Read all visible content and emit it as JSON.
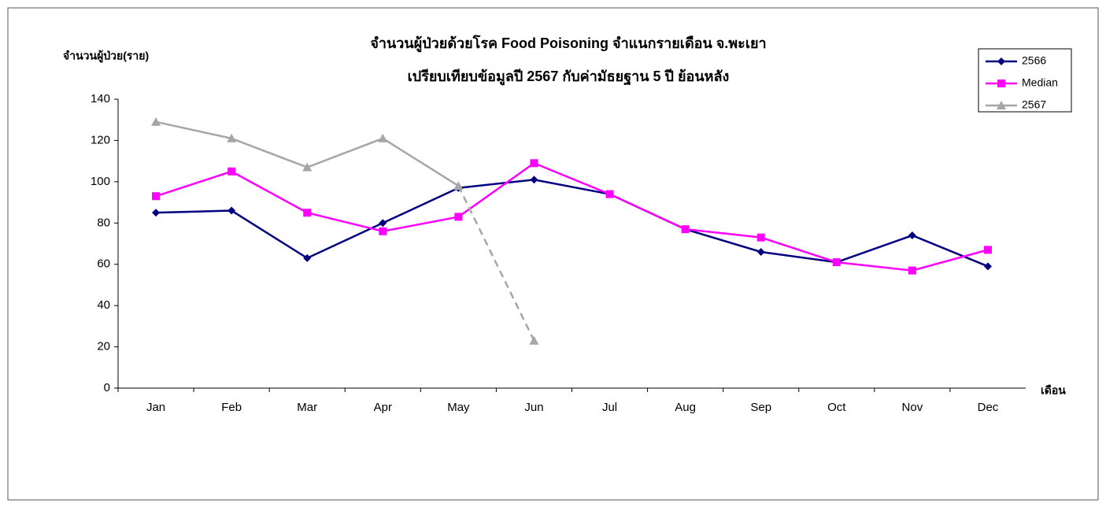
{
  "chart_data": {
    "type": "line",
    "title": "จำนวนผู้ป่วยด้วยโรค  Food Poisoning  จำแนกรายเดือน   จ.พะเยา",
    "subtitle": "เปรียบเทียบข้อมูลปี  2567  กับค่ามัธยฐาน 5 ปี ย้อนหลัง",
    "y_label": "จำนวนผู้ป่วย(ราย)",
    "x_label": "เดือน",
    "categories": [
      "Jan",
      "Feb",
      "Mar",
      "Apr",
      "May",
      "Jun",
      "Jul",
      "Aug",
      "Sep",
      "Oct",
      "Nov",
      "Dec"
    ],
    "series": [
      {
        "name": "2566",
        "color": "#000080",
        "marker": "diamond",
        "values": [
          85,
          86,
          63,
          80,
          97,
          101,
          94,
          77,
          66,
          61,
          74,
          59
        ]
      },
      {
        "name": "Median",
        "color": "#ff00ff",
        "marker": "square",
        "values": [
          93,
          105,
          85,
          76,
          83,
          109,
          94,
          77,
          73,
          61,
          57,
          67
        ]
      },
      {
        "name": "2567",
        "color": "#a6a6a6",
        "marker": "triangle",
        "dashed_last_segment": true,
        "values": [
          129,
          121,
          107,
          121,
          98,
          23,
          null,
          null,
          null,
          null,
          null,
          null
        ]
      }
    ],
    "ylim": [
      0,
      140
    ],
    "yticks": [
      0,
      20,
      40,
      60,
      80,
      100,
      120,
      140
    ],
    "legend": "top-right",
    "grid": false
  }
}
